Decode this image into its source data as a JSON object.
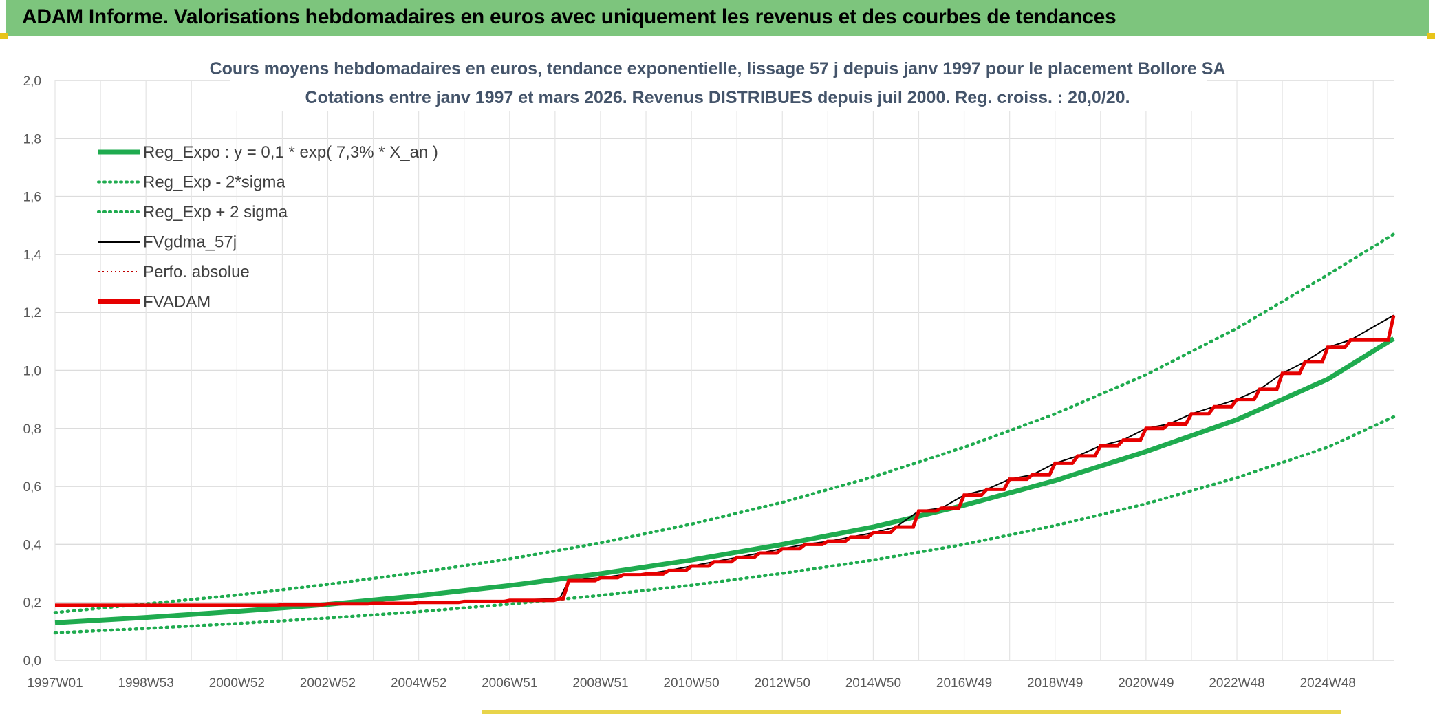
{
  "banner": {
    "title": "ADAM Informe. Valorisations hebdomadaires en euros avec uniquement les revenus et des courbes de tendances"
  },
  "colors": {
    "banner_bg": "#7dc57d",
    "reg": "#1fab4f",
    "adam": "#e60000",
    "fv": "#000000",
    "perfo": "#c00000"
  },
  "chart_data": {
    "type": "line",
    "title": "Cours moyens hebdomadaires en euros, tendance exponentielle, lissage 57 j depuis janv 1997 pour le placement Bollore SA",
    "subtitle": "Cotations entre janv 1997 et mars 2026. Revenus DISTRIBUES depuis juil 2000. Reg. croiss. : 20,0/20.",
    "xlabel": "",
    "ylabel": "",
    "ylim": [
      0,
      2.0
    ],
    "y_ticks": [
      "0,0",
      "0,2",
      "0,4",
      "0,6",
      "0,8",
      "1,0",
      "1,2",
      "1,4",
      "1,6",
      "1,8",
      "2,0"
    ],
    "x_range": [
      1997.0,
      2026.45
    ],
    "x_ticks": [
      {
        "label": "1997W01",
        "x": 1997.0
      },
      {
        "label": "1998W53",
        "x": 1999.0
      },
      {
        "label": "2000W52",
        "x": 2001.0
      },
      {
        "label": "2002W52",
        "x": 2003.0
      },
      {
        "label": "2004W52",
        "x": 2005.0
      },
      {
        "label": "2006W51",
        "x": 2007.0
      },
      {
        "label": "2008W51",
        "x": 2009.0
      },
      {
        "label": "2010W50",
        "x": 2011.0
      },
      {
        "label": "2012W50",
        "x": 2013.0
      },
      {
        "label": "2014W50",
        "x": 2015.0
      },
      {
        "label": "2016W49",
        "x": 2017.0
      },
      {
        "label": "2018W49",
        "x": 2019.0
      },
      {
        "label": "2020W49",
        "x": 2021.0
      },
      {
        "label": "2022W48",
        "x": 2023.0
      },
      {
        "label": "2024W48",
        "x": 2025.0
      }
    ],
    "legend": [
      {
        "name": "Reg_Expo : y = 0,1 * exp( 7,3% *  X_an )",
        "color": "#1fab4f",
        "style": "solid-thick"
      },
      {
        "name": "Reg_Exp - 2*sigma",
        "color": "#1fab4f",
        "style": "dotted"
      },
      {
        "name": "Reg_Exp + 2 sigma",
        "color": "#1fab4f",
        "style": "dotted"
      },
      {
        "name": "FVgdma_57j",
        "color": "#000000",
        "style": "solid"
      },
      {
        "name": "Perfo. absolue",
        "color": "#c00000",
        "style": "dotted-thin"
      },
      {
        "name": "FVADAM",
        "color": "#e60000",
        "style": "solid-thick"
      }
    ],
    "series": [
      {
        "name": "Reg_Expo",
        "x": [
          1997,
          1999,
          2001,
          2003,
          2005,
          2007,
          2009,
          2011,
          2013,
          2015,
          2017,
          2019,
          2021,
          2023,
          2025,
          2026.45
        ],
        "values": [
          0.13,
          0.148,
          0.169,
          0.193,
          0.223,
          0.258,
          0.299,
          0.346,
          0.4,
          0.46,
          0.535,
          0.62,
          0.72,
          0.83,
          0.97,
          1.11
        ]
      },
      {
        "name": "Reg_Exp - 2*sigma",
        "x": [
          1997,
          1999,
          2001,
          2003,
          2005,
          2007,
          2009,
          2011,
          2013,
          2015,
          2017,
          2019,
          2021,
          2023,
          2025,
          2026.45
        ],
        "values": [
          0.095,
          0.11,
          0.127,
          0.146,
          0.168,
          0.194,
          0.224,
          0.259,
          0.3,
          0.346,
          0.4,
          0.465,
          0.54,
          0.63,
          0.735,
          0.84
        ]
      },
      {
        "name": "Reg_Exp + 2 sigma",
        "x": [
          1997,
          1999,
          2001,
          2003,
          2005,
          2007,
          2009,
          2011,
          2013,
          2015,
          2017,
          2019,
          2021,
          2023,
          2025,
          2026.45
        ],
        "values": [
          0.165,
          0.195,
          0.225,
          0.262,
          0.303,
          0.35,
          0.405,
          0.47,
          0.545,
          0.633,
          0.735,
          0.85,
          0.985,
          1.145,
          1.33,
          1.47
        ]
      },
      {
        "name": "FVADAM",
        "x": [
          1997,
          2000.5,
          2001,
          2002,
          2003,
          2004,
          2005,
          2006,
          2007,
          2008.1,
          2008.3,
          2009,
          2009.5,
          2010,
          2010.5,
          2011,
          2011.5,
          2012,
          2012.5,
          2013,
          2013.5,
          2014,
          2014.5,
          2015,
          2015.5,
          2016,
          2016.5,
          2017,
          2017.5,
          2018,
          2018.5,
          2019,
          2019.5,
          2020,
          2020.5,
          2021,
          2021.5,
          2022,
          2022.5,
          2023,
          2023.5,
          2024,
          2024.5,
          2025,
          2025.5,
          2026.45
        ],
        "values": [
          0.19,
          0.19,
          0.19,
          0.192,
          0.195,
          0.197,
          0.2,
          0.203,
          0.207,
          0.213,
          0.275,
          0.285,
          0.295,
          0.298,
          0.31,
          0.325,
          0.34,
          0.355,
          0.37,
          0.385,
          0.4,
          0.41,
          0.425,
          0.44,
          0.46,
          0.515,
          0.525,
          0.57,
          0.59,
          0.625,
          0.64,
          0.68,
          0.705,
          0.74,
          0.76,
          0.8,
          0.815,
          0.85,
          0.875,
          0.9,
          0.935,
          0.99,
          1.03,
          1.08,
          1.105,
          1.19
        ]
      }
    ]
  }
}
